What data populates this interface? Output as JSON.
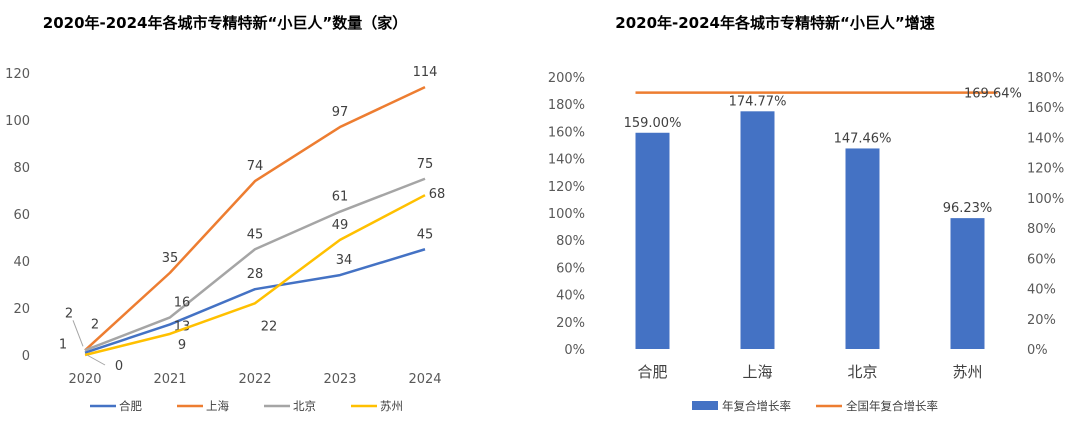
{
  "chart_data": [
    {
      "type": "line",
      "title": "2020年-2024年各城市专精特新“小巨人”数量（家）",
      "x": [
        "2020",
        "2021",
        "2022",
        "2023",
        "2024"
      ],
      "ylim": [
        0,
        120
      ],
      "yticks": [
        0,
        20,
        40,
        60,
        80,
        100,
        120
      ],
      "series": [
        {
          "name": "合肥",
          "color": "#4472C4",
          "values": [
            1,
            13,
            28,
            34,
            45
          ]
        },
        {
          "name": "上海",
          "color": "#ED7D31",
          "values": [
            2,
            35,
            74,
            97,
            114
          ]
        },
        {
          "name": "北京",
          "color": "#A5A5A5",
          "values": [
            2,
            16,
            45,
            61,
            75
          ]
        },
        {
          "name": "苏州",
          "color": "#FFC000",
          "values": [
            0,
            9,
            22,
            49,
            68
          ]
        }
      ]
    },
    {
      "type": "bar",
      "title": "2020年-2024年各城市专精特新“小巨人”增速",
      "categories": [
        "合肥",
        "上海",
        "北京",
        "苏州"
      ],
      "values": [
        159.0,
        174.77,
        147.46,
        96.23
      ],
      "value_labels": [
        "159.00%",
        "174.77%",
        "147.46%",
        "96.23%"
      ],
      "bar_color": "#4472C4",
      "ylim_left": [
        0,
        200
      ],
      "yticks_left": [
        "0%",
        "20%",
        "40%",
        "60%",
        "80%",
        "100%",
        "120%",
        "140%",
        "160%",
        "180%",
        "200%"
      ],
      "ylim_right": [
        0,
        180
      ],
      "yticks_right": [
        "0%",
        "20%",
        "40%",
        "60%",
        "80%",
        "100%",
        "120%",
        "140%",
        "160%",
        "180%"
      ],
      "reference_line": {
        "name": "全国年复合增长率",
        "value": 169.64,
        "label": "169.64%",
        "color": "#ED7D31"
      },
      "legend": [
        "年复合增长率",
        "全国年复合增长率"
      ]
    }
  ]
}
